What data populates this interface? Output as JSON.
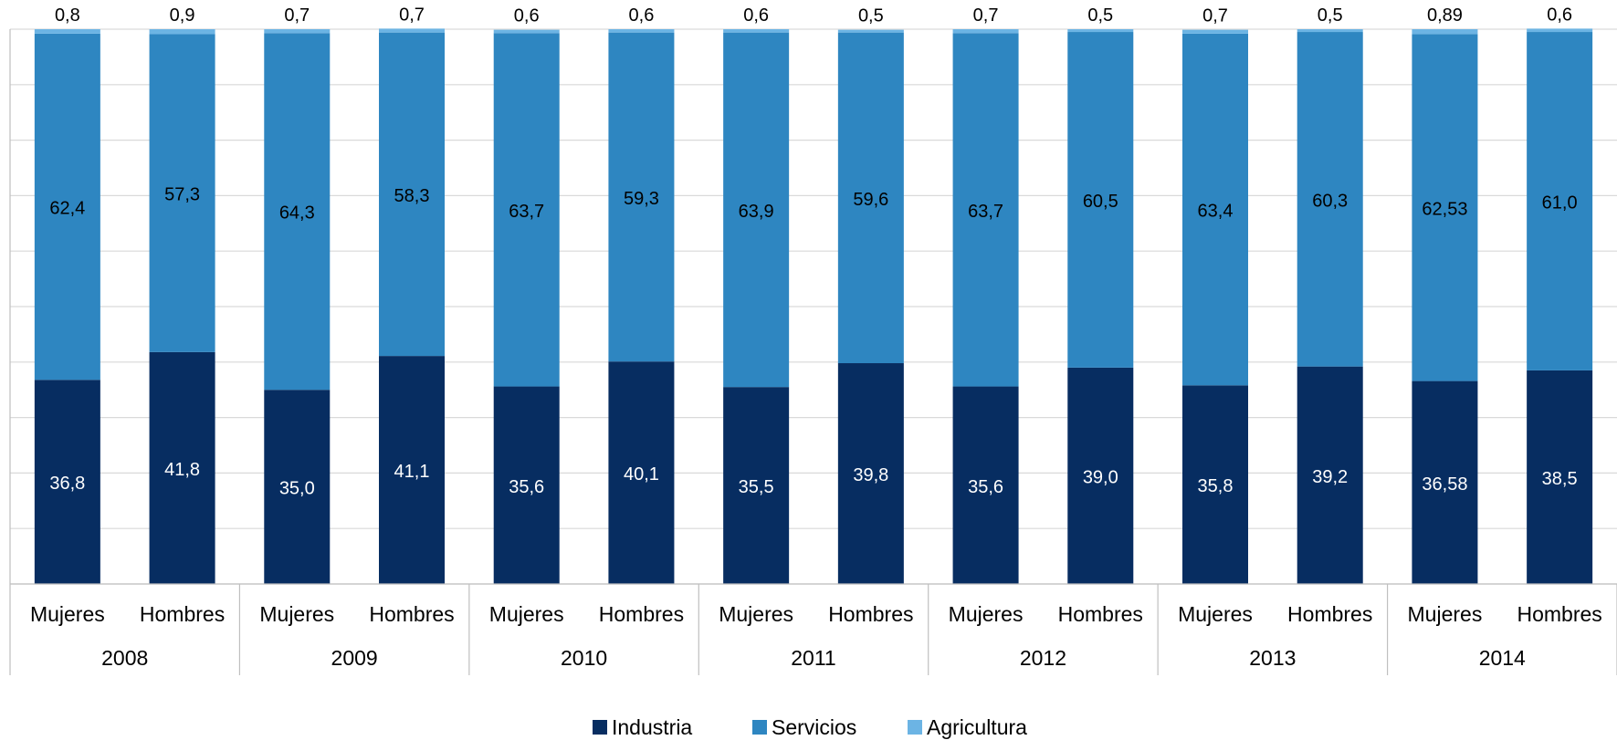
{
  "chart_data": {
    "type": "bar",
    "stacked": true,
    "normalized": true,
    "years": [
      "2008",
      "2009",
      "2010",
      "2011",
      "2012",
      "2013",
      "2014"
    ],
    "groups": [
      "Mujeres",
      "Hombres"
    ],
    "categories": [
      "2008 Mujeres",
      "2008 Hombres",
      "2009 Mujeres",
      "2009 Hombres",
      "2010 Mujeres",
      "2010 Hombres",
      "2011 Mujeres",
      "2011 Hombres",
      "2012 Mujeres",
      "2012 Hombres",
      "2013 Mujeres",
      "2013 Hombres",
      "2014 Mujeres",
      "2014 Hombres"
    ],
    "series": [
      {
        "name": "Industria",
        "color": "#072d61",
        "values": [
          36.8,
          41.8,
          35.0,
          41.1,
          35.6,
          40.1,
          35.5,
          39.8,
          35.6,
          39.0,
          35.8,
          39.2,
          36.58,
          38.5
        ],
        "labels": [
          "36,8",
          "41,8",
          "35,0",
          "41,1",
          "35,6",
          "40,1",
          "35,5",
          "39,8",
          "35,6",
          "39,0",
          "35,8",
          "39,2",
          "36,58",
          "38,5"
        ]
      },
      {
        "name": "Servicios",
        "color": "#2e86c1",
        "values": [
          62.4,
          57.3,
          64.3,
          58.3,
          63.7,
          59.3,
          63.9,
          59.6,
          63.7,
          60.5,
          63.4,
          60.3,
          62.53,
          61.0
        ],
        "labels": [
          "62,4",
          "57,3",
          "64,3",
          "58,3",
          "63,7",
          "59,3",
          "63,9",
          "59,6",
          "63,7",
          "60,5",
          "63,4",
          "60,3",
          "62,53",
          "61,0"
        ]
      },
      {
        "name": "Agricultura",
        "color": "#6cb4e4",
        "values": [
          0.8,
          0.9,
          0.7,
          0.7,
          0.6,
          0.6,
          0.6,
          0.5,
          0.7,
          0.5,
          0.7,
          0.5,
          0.89,
          0.6
        ],
        "labels": [
          "0,8",
          "0,9",
          "0,7",
          "0,7",
          "0,6",
          "0,6",
          "0,6",
          "0,5",
          "0,7",
          "0,5",
          "0,7",
          "0,5",
          "0,89",
          "0,6"
        ]
      }
    ],
    "ylim": [
      0,
      100
    ],
    "grid": true,
    "legend_position": "bottom"
  }
}
